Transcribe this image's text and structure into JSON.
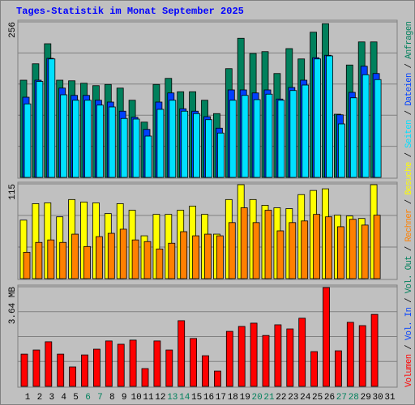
{
  "title": "Tages-Statistik im Monat September 2025",
  "separator": " / ",
  "legend_extra": [
    {
      "name": "Vol. In",
      "color": "#0040ff"
    },
    {
      "name": "Vol. Out",
      "color": "#00805c"
    }
  ],
  "chart_data": [
    {
      "type": "bar",
      "ylim": [
        0,
        256
      ],
      "yticks": [
        256
      ],
      "grid": true,
      "series": [
        {
          "name": "Anfragen",
          "color": "#00805c",
          "values": [
            160,
            187,
            220,
            160,
            159,
            155,
            151,
            153,
            147,
            127,
            91,
            153,
            163,
            141,
            141,
            127,
            105,
            179,
            229,
            204,
            207,
            171,
            212,
            195,
            239,
            253,
            104,
            185,
            223,
            223,
            null
          ]
        },
        {
          "name": "Dateien",
          "color": "#0040ff",
          "values": [
            132,
            160,
            196,
            147,
            135,
            135,
            127,
            124,
            109,
            99,
            79,
            124,
            139,
            113,
            109,
            100,
            81,
            144,
            144,
            139,
            144,
            129,
            148,
            160,
            197,
            201,
            103,
            140,
            183,
            171,
            null
          ]
        },
        {
          "name": "Seiten",
          "color": "#00e0ff",
          "values": [
            121,
            158,
            195,
            136,
            127,
            127,
            119,
            116,
            97,
            96,
            68,
            112,
            127,
            109,
            105,
            95,
            73,
            127,
            135,
            128,
            137,
            127,
            143,
            152,
            195,
            200,
            88,
            131,
            169,
            161,
            null
          ]
        }
      ]
    },
    {
      "type": "bar",
      "ylim": [
        0,
        115
      ],
      "yticks": [
        115
      ],
      "grid": true,
      "series": [
        {
          "name": "Besuche",
          "color": "#ffff00",
          "values": [
            71,
            91,
            92,
            75,
            96,
            93,
            92,
            79,
            91,
            83,
            52,
            78,
            78,
            83,
            88,
            78,
            54,
            96,
            114,
            96,
            89,
            86,
            85,
            102,
            107,
            109,
            77,
            76,
            73,
            114,
            null
          ]
        },
        {
          "name": "Rechner",
          "color": "#ff8000",
          "values": [
            32,
            44,
            47,
            44,
            54,
            39,
            51,
            55,
            60,
            47,
            45,
            36,
            43,
            57,
            52,
            54,
            52,
            68,
            86,
            68,
            83,
            58,
            68,
            70,
            78,
            75,
            63,
            72,
            65,
            77,
            null
          ]
        }
      ]
    },
    {
      "type": "bar",
      "ylim": [
        0,
        3.64
      ],
      "yticks": [
        {
          "value": 3.64,
          "label": "3.64 MB"
        }
      ],
      "grid": true,
      "categories": [
        "1",
        "2",
        "3",
        "4",
        "5",
        "6",
        "7",
        "8",
        "9",
        "10",
        "11",
        "12",
        "13",
        "14",
        "15",
        "16",
        "17",
        "18",
        "19",
        "20",
        "21",
        "22",
        "23",
        "24",
        "25",
        "26",
        "27",
        "28",
        "29",
        "30",
        "31"
      ],
      "category_colors": [
        "#000000",
        "#000000",
        "#000000",
        "#000000",
        "#000000",
        "#00805c",
        "#00805c",
        "#000000",
        "#000000",
        "#000000",
        "#000000",
        "#000000",
        "#00805c",
        "#00805c",
        "#000000",
        "#000000",
        "#000000",
        "#000000",
        "#000000",
        "#00805c",
        "#00805c",
        "#000000",
        "#000000",
        "#000000",
        "#000000",
        "#000000",
        "#00805c",
        "#00805c",
        "#000000",
        "#000000",
        "#000000"
      ],
      "series": [
        {
          "name": "Volumen",
          "color": "#ff0000",
          "values": [
            1.18,
            1.33,
            1.63,
            1.18,
            0.71,
            1.15,
            1.36,
            1.66,
            1.54,
            1.69,
            0.65,
            1.66,
            1.33,
            2.4,
            1.75,
            1.12,
            0.56,
            2.01,
            2.19,
            2.31,
            1.86,
            2.25,
            2.1,
            2.49,
            1.27,
            3.61,
            1.3,
            2.34,
            2.22,
            2.63,
            null
          ]
        }
      ]
    }
  ]
}
